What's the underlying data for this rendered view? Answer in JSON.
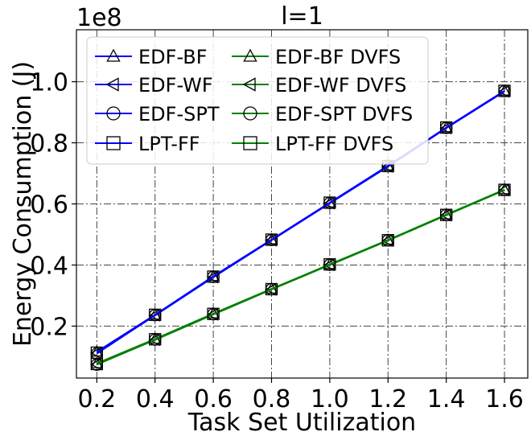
{
  "chart_data": {
    "type": "line",
    "title": "l=1",
    "xlabel": "Task Set Utilization",
    "ylabel": "Energy Consumption (J)",
    "y_offset_text": "1e8",
    "x": [
      0.2,
      0.4,
      0.6,
      0.8,
      1.0,
      1.2,
      1.4,
      1.6
    ],
    "x_ticks": [
      "0.2",
      "0.4",
      "0.6",
      "0.8",
      "1.0",
      "1.2",
      "1.4",
      "1.6"
    ],
    "y_ticks": [
      "0.2",
      "0.4",
      "0.6",
      "0.8",
      "1.0"
    ],
    "xlim": [
      0.13,
      1.68
    ],
    "ylim": [
      0.03,
      1.17
    ],
    "grid": true,
    "legend_position": "top-left",
    "legend_columns": 2,
    "series": [
      {
        "name": "EDF-BF",
        "color": "#0000ff",
        "marker": "triangle-up",
        "values": [
          0.116,
          0.237,
          0.363,
          0.483,
          0.604,
          0.725,
          0.85,
          0.97
        ]
      },
      {
        "name": "EDF-WF",
        "color": "#0000ff",
        "marker": "triangle-left",
        "values": [
          0.112,
          0.235,
          0.36,
          0.481,
          0.602,
          0.722,
          0.848,
          0.968
        ]
      },
      {
        "name": "EDF-SPT",
        "color": "#0000ff",
        "marker": "circle",
        "values": [
          0.11,
          0.236,
          0.361,
          0.482,
          0.603,
          0.724,
          0.849,
          0.969
        ]
      },
      {
        "name": "LPT-FF",
        "color": "#0000ff",
        "marker": "square",
        "values": [
          0.113,
          0.237,
          0.362,
          0.483,
          0.604,
          0.724,
          0.85,
          0.97
        ]
      },
      {
        "name": "EDF-BF DVFS",
        "color": "#008000",
        "marker": "triangle-up",
        "values": [
          0.078,
          0.158,
          0.241,
          0.322,
          0.402,
          0.482,
          0.565,
          0.647
        ]
      },
      {
        "name": "EDF-WF DVFS",
        "color": "#008000",
        "marker": "triangle-left",
        "values": [
          0.075,
          0.155,
          0.238,
          0.32,
          0.4,
          0.48,
          0.563,
          0.645
        ]
      },
      {
        "name": "EDF-SPT DVFS",
        "color": "#008000",
        "marker": "circle",
        "values": [
          0.074,
          0.156,
          0.239,
          0.321,
          0.401,
          0.481,
          0.564,
          0.646
        ]
      },
      {
        "name": "LPT-FF DVFS",
        "color": "#008000",
        "marker": "square",
        "values": [
          0.076,
          0.157,
          0.24,
          0.321,
          0.402,
          0.481,
          0.564,
          0.646
        ]
      }
    ]
  }
}
